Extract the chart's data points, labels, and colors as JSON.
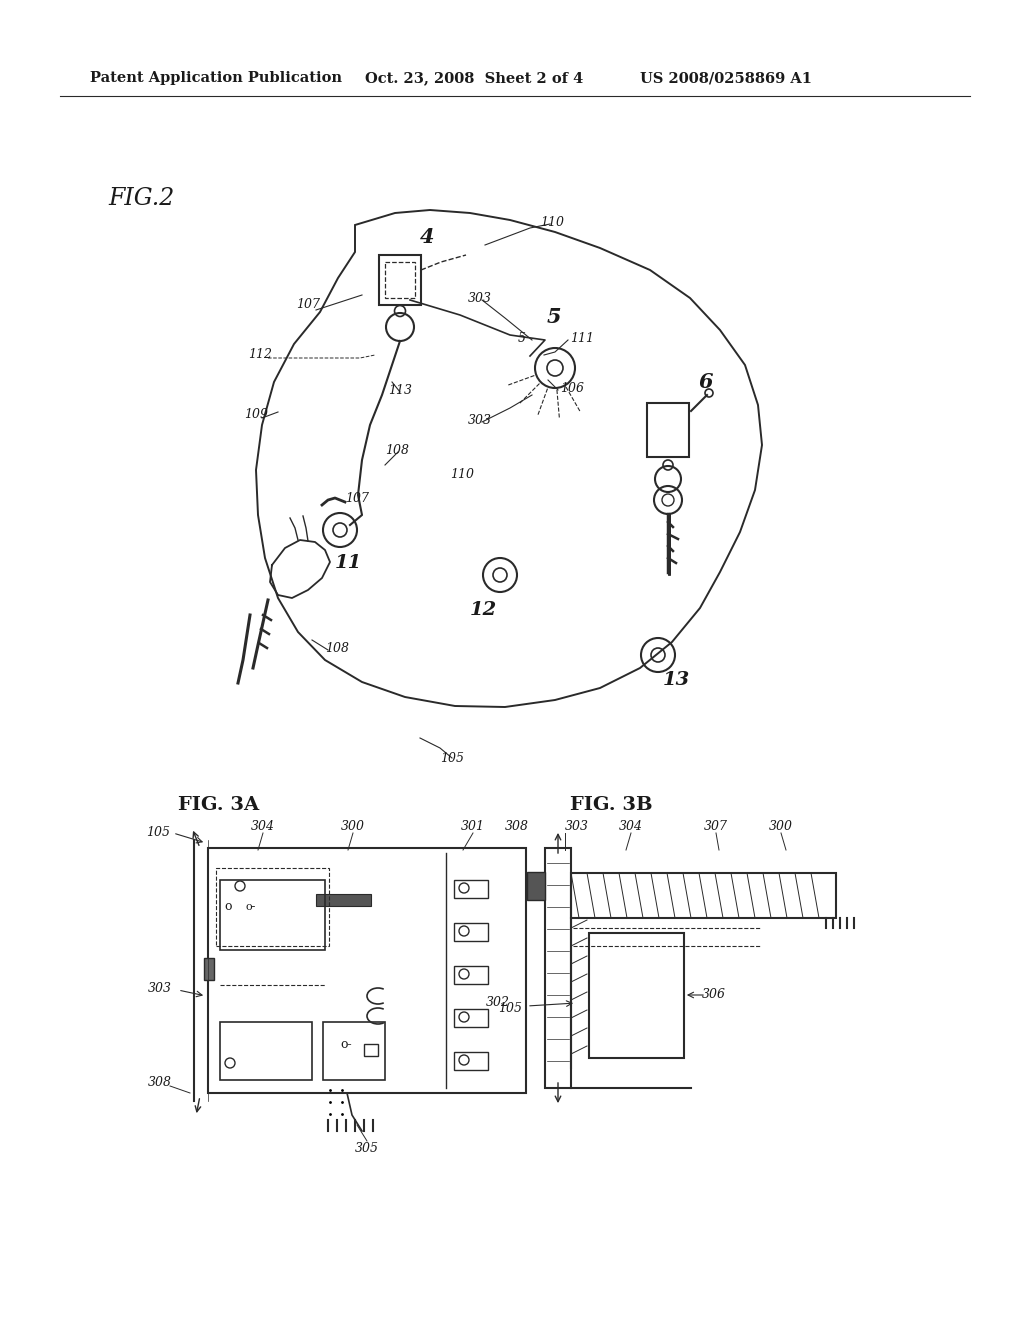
{
  "background_color": "#ffffff",
  "line_color": "#2a2a2a",
  "text_color": "#1a1a1a",
  "header_left": "Patent Application Publication",
  "header_mid": "Oct. 23, 2008  Sheet 2 of 4",
  "header_right": "US 2008/0258869 A1",
  "fig2_label": "FIG.2",
  "fig3a_label": "FIG. 3A",
  "fig3b_label": "FIG. 3B"
}
